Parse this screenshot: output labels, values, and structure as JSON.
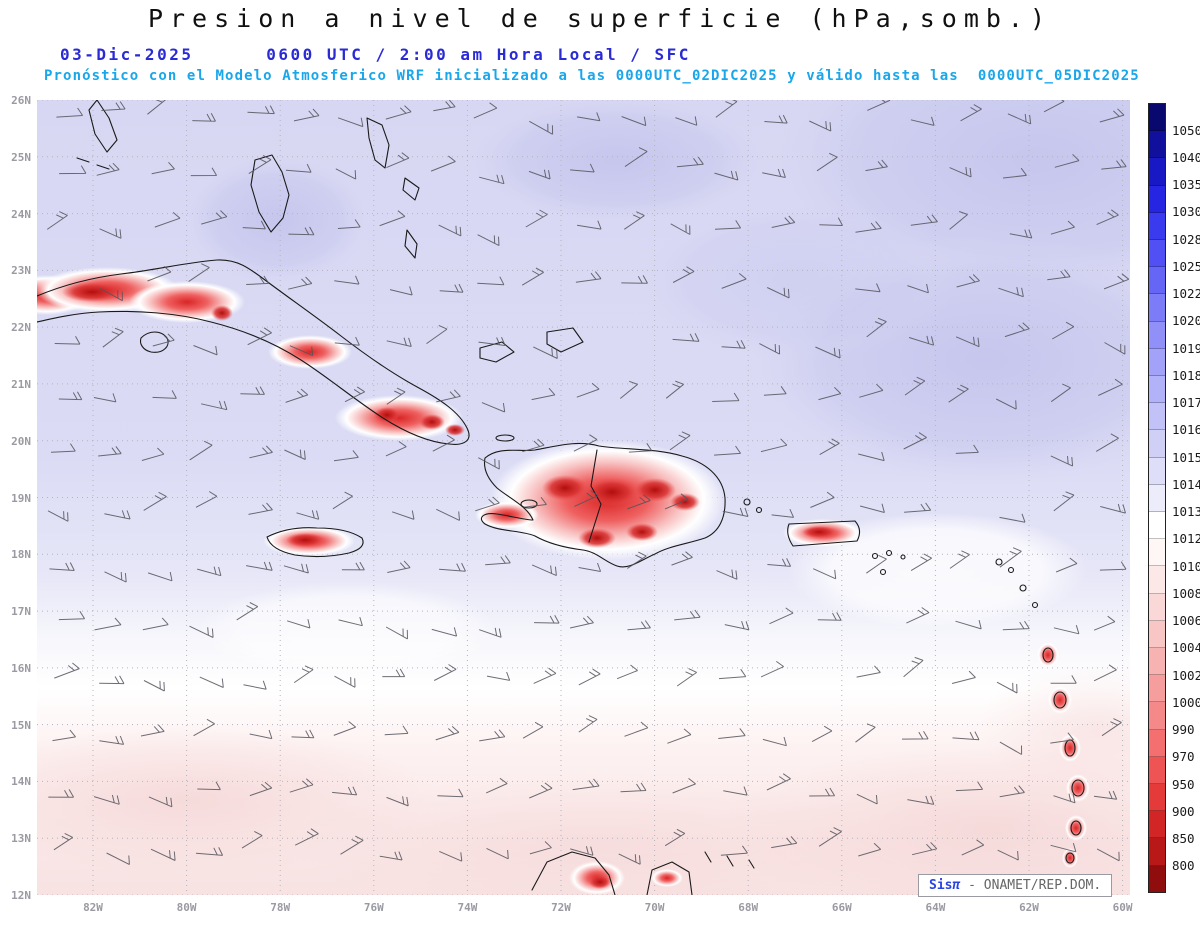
{
  "header": {
    "title": "Presion a nivel de superficie (hPa,somb.)",
    "subtitle_datetime": "03-Dic-2025      0600 UTC / 2:00 am Hora Local / SFC",
    "subtitle_model": "Pronóstico con el Modelo Atmosferico WRF inicializado a las 0000UTC_02DIC2025 y válido hasta las  0000UTC_05DIC2025"
  },
  "map": {
    "lat_labels": [
      "26N",
      "25N",
      "24N",
      "23N",
      "22N",
      "21N",
      "20N",
      "19N",
      "18N",
      "17N",
      "16N",
      "15N",
      "14N",
      "13N",
      "12N"
    ],
    "lon_labels": [
      "82W",
      "80W",
      "78W",
      "76W",
      "74W",
      "72W",
      "70W",
      "68W",
      "66W",
      "64W",
      "62W",
      "60W"
    ]
  },
  "colorbar": {
    "unit": "hPa",
    "values": [
      1050,
      1040,
      1035,
      1030,
      1028,
      1025,
      1022,
      1020,
      1019,
      1018,
      1017,
      1016,
      1015,
      1014,
      1013,
      1012,
      1010,
      1008,
      1006,
      1004,
      1002,
      1000,
      990,
      970,
      950,
      900,
      850,
      800
    ],
    "colors": [
      "#08086e",
      "#10109c",
      "#1818c4",
      "#2626e2",
      "#3a3aee",
      "#5050f4",
      "#6666f6",
      "#7c7cf8",
      "#9090f8",
      "#a2a2f8",
      "#b2b2f8",
      "#c2c2f8",
      "#d0d0f7",
      "#dedef8",
      "#ececfb",
      "#ffffff",
      "#fff6f6",
      "#fde8e8",
      "#fbd8d8",
      "#f9c6c6",
      "#f7b2b2",
      "#f69e9e",
      "#f58888",
      "#f47070",
      "#ee5454",
      "#e43a3a",
      "#d22626",
      "#b81818",
      "#8f0d0d"
    ]
  },
  "watermark": {
    "brand": "Sis",
    "pi": "π",
    "text": " - ONAMET/REP.DOM."
  }
}
